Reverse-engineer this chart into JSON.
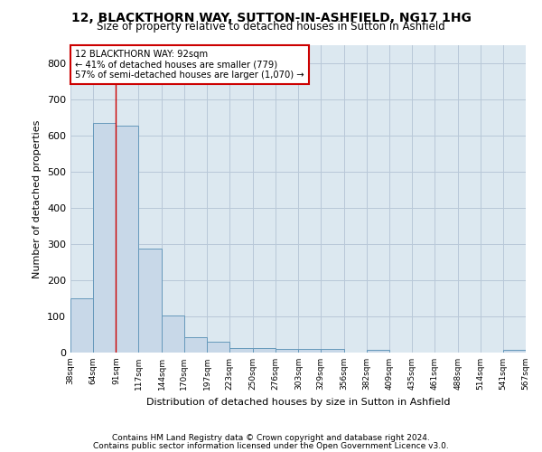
{
  "title1": "12, BLACKTHORN WAY, SUTTON-IN-ASHFIELD, NG17 1HG",
  "title2": "Size of property relative to detached houses in Sutton in Ashfield",
  "xlabel": "Distribution of detached houses by size in Sutton in Ashfield",
  "ylabel": "Number of detached properties",
  "footnote1": "Contains HM Land Registry data © Crown copyright and database right 2024.",
  "footnote2": "Contains public sector information licensed under the Open Government Licence v3.0.",
  "annotation_line1": "12 BLACKTHORN WAY: 92sqm",
  "annotation_line2": "← 41% of detached houses are smaller (779)",
  "annotation_line3": "57% of semi-detached houses are larger (1,070) →",
  "bar_color": "#c8d8e8",
  "bar_edge_color": "#6699bb",
  "grid_color": "#b8c8d8",
  "background_color": "#dce8f0",
  "vline_color": "#cc0000",
  "vline_x": 91,
  "bin_edges": [
    38,
    64,
    91,
    117,
    144,
    170,
    197,
    223,
    250,
    276,
    303,
    329,
    356,
    382,
    409,
    435,
    461,
    488,
    514,
    541,
    567
  ],
  "bar_heights": [
    150,
    635,
    627,
    287,
    102,
    42,
    30,
    12,
    12,
    11,
    10,
    10,
    0,
    8,
    0,
    0,
    0,
    0,
    0,
    8
  ],
  "ylim": [
    0,
    850
  ],
  "yticks": [
    0,
    100,
    200,
    300,
    400,
    500,
    600,
    700,
    800
  ],
  "annotation_box_color": "white",
  "annotation_box_edge": "#cc0000"
}
